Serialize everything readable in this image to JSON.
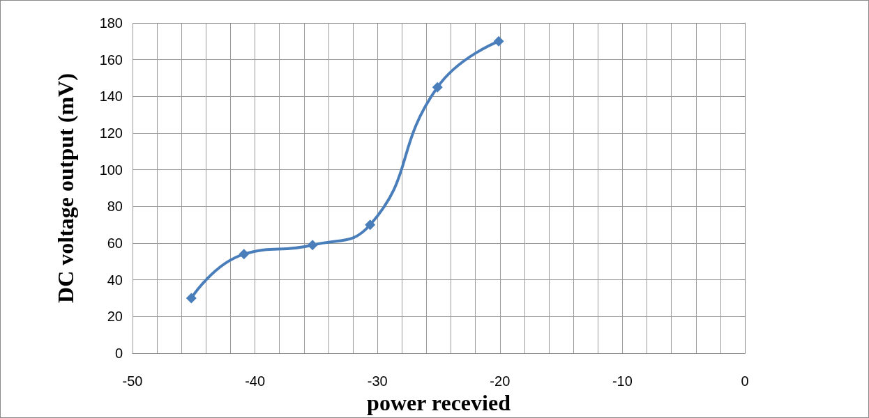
{
  "chart_data": {
    "type": "line",
    "xlabel": "power recevied",
    "ylabel": "DC voltage output (mV)",
    "x": [
      -45.2,
      -40.9,
      -35.3,
      -30.6,
      -25.1,
      -20.1
    ],
    "series": [
      {
        "color": "#4a7ebb",
        "values": [
          30,
          54,
          59,
          70,
          145,
          170
        ]
      }
    ],
    "xlim": [
      -50,
      0
    ],
    "xticks": [
      -50,
      {
        "value": -48,
        "label": null
      },
      {
        "value": -46,
        "label": null
      },
      {
        "value": -44,
        "label": null
      },
      {
        "value": -42,
        "label": null
      },
      -40,
      {
        "value": -38,
        "label": null
      },
      {
        "value": -36,
        "label": null
      },
      {
        "value": -34,
        "label": null
      },
      {
        "value": -32,
        "label": null
      },
      -30,
      {
        "value": -28,
        "label": null
      },
      {
        "value": -26,
        "label": null
      },
      {
        "value": -24,
        "label": null
      },
      {
        "value": -22,
        "label": null
      },
      -20,
      {
        "value": -18,
        "label": null
      },
      {
        "value": -16,
        "label": null
      },
      {
        "value": -14,
        "label": null
      },
      {
        "value": -12,
        "label": null
      },
      -10,
      {
        "value": -8,
        "label": null
      },
      {
        "value": -6,
        "label": null
      },
      {
        "value": -4,
        "label": null
      },
      {
        "value": -2,
        "label": null
      },
      0
    ],
    "ylim": [
      0,
      180
    ],
    "yticks": [
      0,
      20,
      40,
      60,
      80,
      100,
      120,
      140,
      160,
      180
    ],
    "grid": true,
    "marker": "diamond",
    "line_style": "solid"
  }
}
